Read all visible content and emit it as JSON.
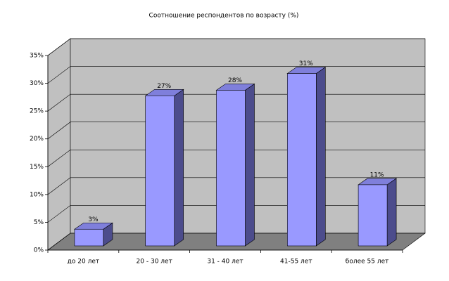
{
  "chart_data": {
    "type": "bar3d",
    "title": "Соотношение респондентов по возрасту (%)",
    "categories": [
      "до 20 лет",
      "20 - 30 лет",
      "31 - 40 лет",
      "41-55 лет",
      "более 55 лет"
    ],
    "values": [
      3,
      27,
      28,
      31,
      11
    ],
    "value_labels": [
      "3%",
      "27%",
      "28%",
      "31%",
      "11%"
    ],
    "color": "#9999ff",
    "ylim": [
      0,
      35
    ],
    "yticks": [
      {
        "value": 0,
        "label": "0%"
      },
      {
        "value": 5,
        "label": "5%"
      },
      {
        "value": 10,
        "label": "10%"
      },
      {
        "value": 15,
        "label": "15%"
      },
      {
        "value": 20,
        "label": "20%"
      },
      {
        "value": 25,
        "label": "25%"
      },
      {
        "value": 30,
        "label": "30%"
      },
      {
        "value": 35,
        "label": "35%"
      }
    ],
    "grid": true
  }
}
